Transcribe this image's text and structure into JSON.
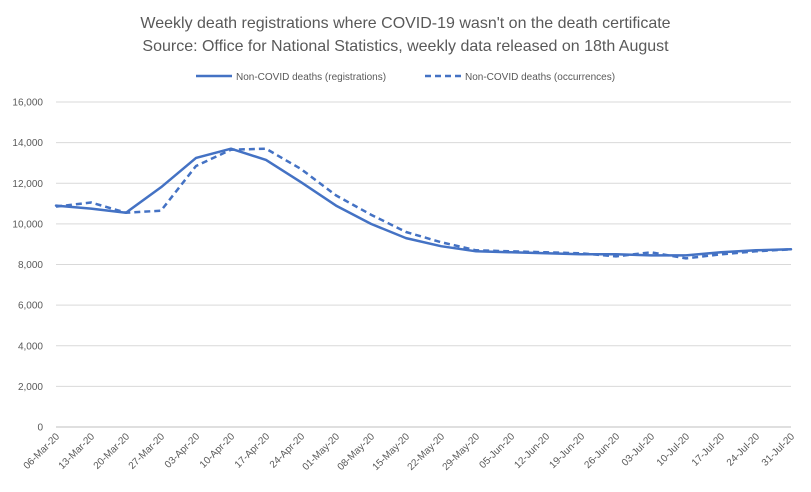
{
  "chart_data": {
    "type": "line",
    "title": "Weekly death registrations where COVID-19 wasn't on the death certificate",
    "subtitle": "Source: Office for National Statistics, weekly data released on 18th August",
    "xlabel": "",
    "ylabel": "",
    "ylim": [
      0,
      16000
    ],
    "yticks": [
      0,
      2000,
      4000,
      6000,
      8000,
      10000,
      12000,
      14000,
      16000
    ],
    "ytick_labels": [
      "0",
      "2,000",
      "4,000",
      "6,000",
      "8,000",
      "10,000",
      "12,000",
      "14,000",
      "16,000"
    ],
    "grid": true,
    "legend_position": "top",
    "categories": [
      "06-Mar-20",
      "13-Mar-20",
      "20-Mar-20",
      "27-Mar-20",
      "03-Apr-20",
      "10-Apr-20",
      "17-Apr-20",
      "24-Apr-20",
      "01-May-20",
      "08-May-20",
      "15-May-20",
      "22-May-20",
      "29-May-20",
      "05-Jun-20",
      "12-Jun-20",
      "19-Jun-20",
      "26-Jun-20",
      "03-Jul-20",
      "10-Jul-20",
      "17-Jul-20",
      "24-Jul-20",
      "31-Jul-20"
    ],
    "series": [
      {
        "name": "Non-COVID deaths (registrations)",
        "color": "#4472c4",
        "style": "solid",
        "values": [
          10900,
          10750,
          10550,
          11800,
          13250,
          13700,
          13150,
          12050,
          10900,
          10000,
          9300,
          8900,
          8650,
          8600,
          8550,
          8500,
          8500,
          8450,
          8450,
          8600,
          8700,
          8750
        ]
      },
      {
        "name": "Non-COVID deaths (occurrences)",
        "color": "#4472c4",
        "style": "dashed",
        "values": [
          10850,
          11050,
          10550,
          10650,
          12850,
          13650,
          13700,
          12700,
          11400,
          10450,
          9600,
          9100,
          8700,
          8650,
          8600,
          8550,
          8400,
          8600,
          8300,
          8500,
          8650,
          8750
        ]
      }
    ]
  }
}
